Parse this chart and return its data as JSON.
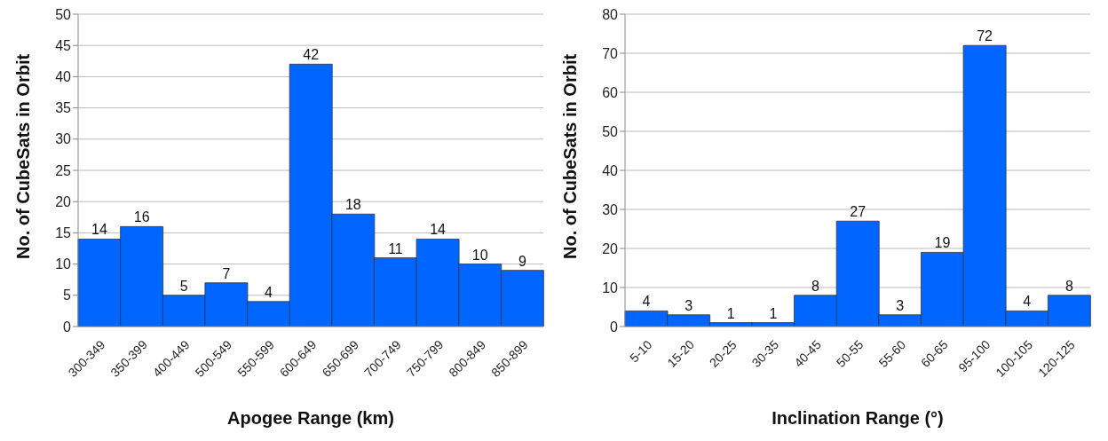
{
  "chart_data": [
    {
      "type": "bar",
      "xlabel": "Apogee Range (km)",
      "ylabel": "No. of CubeSats in Orbit",
      "categories": [
        "300-349",
        "350-399",
        "400-449",
        "500-549",
        "550-599",
        "600-649",
        "650-699",
        "700-749",
        "750-799",
        "800-849",
        "850-899"
      ],
      "values": [
        14,
        16,
        5,
        7,
        4,
        42,
        18,
        11,
        14,
        10,
        9
      ],
      "color": "#0066ff",
      "ylim": [
        0,
        50
      ],
      "yticks": [
        0,
        5,
        10,
        15,
        20,
        25,
        30,
        35,
        40,
        45,
        50
      ],
      "grid": "y",
      "data_labels": true
    },
    {
      "type": "bar",
      "xlabel": "Inclination Range (°)",
      "ylabel": "No. of CubeSats in Orbit",
      "categories": [
        "5-10",
        "15-20",
        "20-25",
        "30-35",
        "40-45",
        "50-55",
        "55-60",
        "60-65",
        "95-100",
        "100-105",
        "120-125"
      ],
      "values": [
        4,
        3,
        1,
        1,
        8,
        27,
        3,
        19,
        72,
        4,
        8
      ],
      "color": "#0066ff",
      "ylim": [
        0,
        80
      ],
      "yticks": [
        0,
        10,
        20,
        30,
        40,
        50,
        60,
        70,
        80
      ],
      "grid": "y",
      "data_labels": true
    }
  ]
}
